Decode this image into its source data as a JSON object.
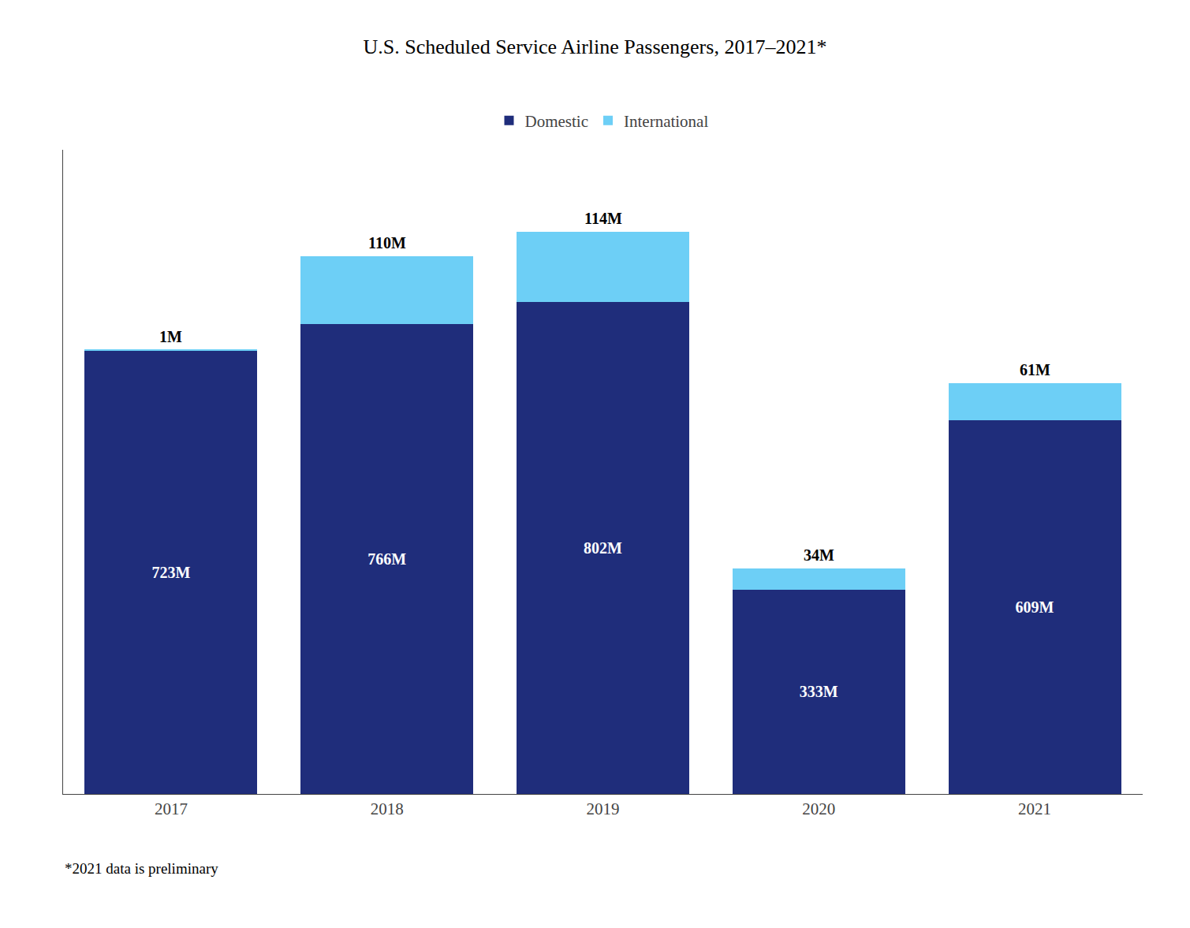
{
  "chart_data": {
    "type": "bar",
    "title": "U.S. Scheduled Service Airline Passengers, 2017–2021*",
    "categories": [
      "2017",
      "2018",
      "2019",
      "2020",
      "2021"
    ],
    "series": [
      {
        "name": "Domestic",
        "color": "#1F2D7B",
        "values": [
          723,
          766,
          802,
          333,
          609
        ],
        "value_labels": [
          "723M",
          "766M",
          "802M",
          "333M",
          "609M"
        ]
      },
      {
        "name": "International",
        "color": "#6DCFF6",
        "values": [
          1,
          110,
          114,
          34,
          61
        ],
        "value_labels": [
          "1M",
          "110M",
          "114M",
          "34M",
          "61M"
        ]
      }
    ],
    "stacked": true,
    "data_labels": true,
    "ylim": [
      0,
      1050
    ],
    "tick_labels": "x",
    "grid": false,
    "legend": "top",
    "annotations": [
      "*2021 data is preliminary"
    ]
  }
}
